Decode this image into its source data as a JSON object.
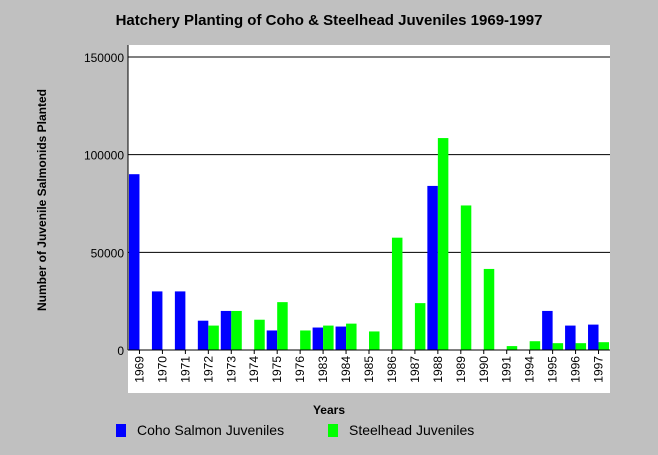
{
  "chart_data": {
    "type": "bar",
    "title": "Hatchery Planting of Coho & Steelhead Juveniles 1969-1997",
    "xlabel": "Years",
    "ylabel": "Number of Juvenile Salmonids Planted",
    "ylim": [
      0,
      150000
    ],
    "yticks": [
      {
        "value": 0,
        "label": "0"
      },
      {
        "value": 50000,
        "label": "50000"
      },
      {
        "value": 100000,
        "label": "100000"
      },
      {
        "value": 150000,
        "label": "150000"
      }
    ],
    "grid": true,
    "legend_position": "bottom",
    "categories": [
      "1969",
      "1970",
      "1971",
      "1972",
      "1973",
      "1974",
      "1975",
      "1976",
      "1983",
      "1984",
      "1985",
      "1986",
      "1987",
      "1988",
      "1989",
      "1990",
      "1991",
      "1994",
      "1995",
      "1996",
      "1997"
    ],
    "series": [
      {
        "name": "Coho Salmon Juveniles",
        "color": "#0000ff",
        "values": [
          90000,
          30000,
          30000,
          15000,
          20000,
          0,
          10000,
          0,
          11500,
          12000,
          0,
          0,
          0,
          84000,
          0,
          0,
          0,
          0,
          20000,
          12500,
          13000
        ]
      },
      {
        "name": "Steelhead Juveniles",
        "color": "#00ff00",
        "values": [
          0,
          0,
          0,
          12500,
          20000,
          15500,
          24500,
          10000,
          12500,
          13500,
          9500,
          57500,
          24000,
          108500,
          74000,
          41500,
          2000,
          4500,
          3500,
          3500,
          4000
        ]
      }
    ]
  }
}
